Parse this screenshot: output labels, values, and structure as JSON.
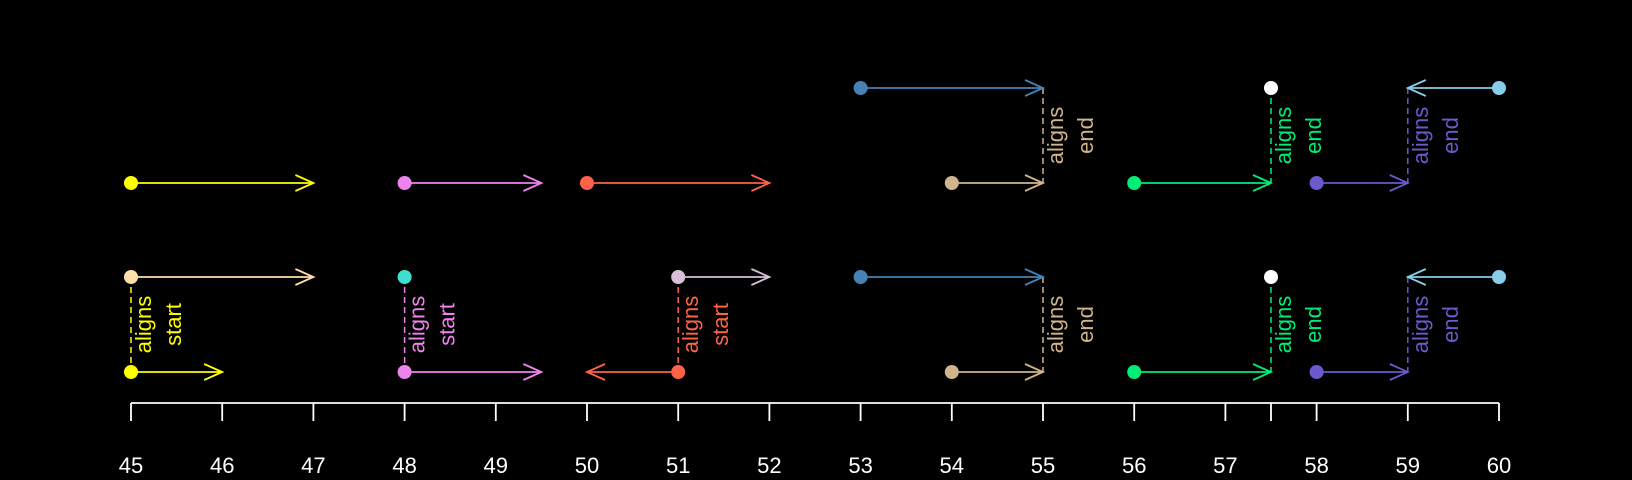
{
  "chart_data": {
    "type": "scatter",
    "title": "",
    "xlabel": "",
    "ylabel": "",
    "xlim": [
      45,
      60
    ],
    "x_ticks": [
      "45",
      "46",
      "47",
      "48",
      "49",
      "50",
      "51",
      "52",
      "53",
      "54",
      "55",
      "56",
      "57",
      "58",
      "59",
      "60"
    ],
    "x_tick_values": [
      45,
      46,
      47,
      48,
      49,
      50,
      51,
      52,
      53,
      54,
      55,
      56,
      57,
      57.5,
      58,
      59,
      60
    ],
    "x_tick_label_values": [
      45,
      46,
      47,
      48,
      49,
      50,
      51,
      52,
      53,
      54,
      55,
      56,
      57,
      58,
      59,
      60
    ],
    "background": "#000000",
    "axis_color": "#ffffff",
    "rows": [
      {
        "y": 4,
        "arrows": [
          {
            "start": 53,
            "end": 55,
            "color": "#4682b4"
          },
          {
            "start": 57.5,
            "end": 57.5,
            "color": "#ffffff"
          },
          {
            "start": 60,
            "end": 59,
            "color": "#87ceeb"
          }
        ]
      },
      {
        "y": 3,
        "arrows": [
          {
            "start": 45,
            "end": 47,
            "color": "#ffff00"
          },
          {
            "start": 48,
            "end": 49.5,
            "color": "#ee82ee"
          },
          {
            "start": 50,
            "end": 52,
            "color": "#ff6347"
          },
          {
            "start": 54,
            "end": 55,
            "color": "#d2b48c"
          },
          {
            "start": 56,
            "end": 57.5,
            "color": "#00ee76"
          },
          {
            "start": 58,
            "end": 59,
            "color": "#6a5acd"
          }
        ]
      },
      {
        "y": 2,
        "arrows": [
          {
            "start": 45,
            "end": 47,
            "color": "#ffdead"
          },
          {
            "start": 48,
            "end": 48,
            "color": "#40e0d0"
          },
          {
            "start": 51,
            "end": 52,
            "color": "#d8bfd8"
          },
          {
            "start": 53,
            "end": 55,
            "color": "#4682b4"
          },
          {
            "start": 57.5,
            "end": 57.5,
            "color": "#ffffff"
          },
          {
            "start": 60,
            "end": 59,
            "color": "#87ceeb"
          }
        ]
      },
      {
        "y": 1,
        "arrows": [
          {
            "start": 45,
            "end": 46,
            "color": "#ffff00"
          },
          {
            "start": 48,
            "end": 49.5,
            "color": "#ee82ee"
          },
          {
            "start": 51,
            "end": 50,
            "color": "#ff6347"
          },
          {
            "start": 54,
            "end": 55,
            "color": "#d2b48c"
          },
          {
            "start": 56,
            "end": 57.5,
            "color": "#00ee76"
          },
          {
            "start": 58,
            "end": 59,
            "color": "#6a5acd"
          }
        ]
      }
    ],
    "annotations": [
      {
        "x": 55,
        "y_from": 4,
        "y_to": 3,
        "lines": [
          "aligns",
          "end"
        ],
        "color": "#d2b48c"
      },
      {
        "x": 57.5,
        "y_from": 4,
        "y_to": 3,
        "lines": [
          "aligns",
          "end"
        ],
        "color": "#00ee76"
      },
      {
        "x": 59,
        "y_from": 4,
        "y_to": 3,
        "lines": [
          "aligns",
          "end"
        ],
        "color": "#6a5acd"
      },
      {
        "x": 45,
        "y_from": 2,
        "y_to": 1,
        "lines": [
          "aligns",
          "start"
        ],
        "color": "#ffff00"
      },
      {
        "x": 48,
        "y_from": 2,
        "y_to": 1,
        "lines": [
          "aligns",
          "start"
        ],
        "color": "#ee82ee"
      },
      {
        "x": 51,
        "y_from": 2,
        "y_to": 1,
        "lines": [
          "aligns",
          "start"
        ],
        "color": "#ff6347"
      },
      {
        "x": 55,
        "y_from": 2,
        "y_to": 1,
        "lines": [
          "aligns",
          "end"
        ],
        "color": "#d2b48c"
      },
      {
        "x": 57.5,
        "y_from": 2,
        "y_to": 1,
        "lines": [
          "aligns",
          "end"
        ],
        "color": "#00ee76"
      },
      {
        "x": 59,
        "y_from": 2,
        "y_to": 1,
        "lines": [
          "aligns",
          "end"
        ],
        "color": "#6a5acd"
      }
    ]
  }
}
